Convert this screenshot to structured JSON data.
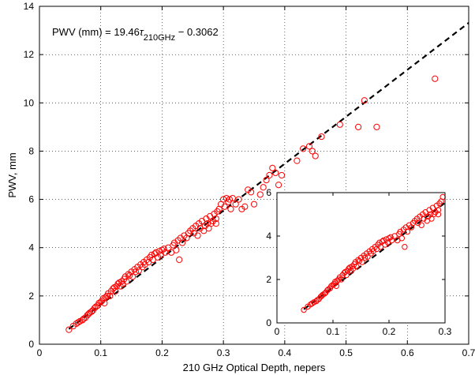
{
  "chart_data": [
    {
      "id": "main",
      "type": "scatter",
      "xlabel": "210 GHz Optical Depth, nepers",
      "ylabel": "PWV, mm",
      "xlim": [
        0,
        0.7
      ],
      "ylim": [
        0,
        14
      ],
      "xticks": [
        "0",
        "0.1",
        "0.2",
        "0.3",
        "0.4",
        "0.5",
        "0.6",
        "0.7"
      ],
      "yticks": [
        "0",
        "2",
        "4",
        "6",
        "8",
        "10",
        "12",
        "14"
      ],
      "grid": true,
      "annotation": {
        "prefix": "PWV (mm) = 19.46",
        "tau": "τ",
        "subscript": "210GHz",
        "suffix": " − 0.3062"
      },
      "fit": {
        "slope": 19.46,
        "intercept": -0.3062,
        "style": "dashed",
        "color": "#000000"
      },
      "marker_color": "#ff0000",
      "points": [
        [
          0.048,
          0.6
        ],
        [
          0.055,
          0.75
        ],
        [
          0.06,
          0.85
        ],
        [
          0.063,
          0.9
        ],
        [
          0.066,
          0.95
        ],
        [
          0.07,
          1.0
        ],
        [
          0.072,
          1.05
        ],
        [
          0.075,
          1.1
        ],
        [
          0.078,
          1.2
        ],
        [
          0.08,
          1.25
        ],
        [
          0.082,
          1.3
        ],
        [
          0.085,
          1.35
        ],
        [
          0.087,
          1.4
        ],
        [
          0.09,
          1.5
        ],
        [
          0.092,
          1.55
        ],
        [
          0.095,
          1.6
        ],
        [
          0.097,
          1.7
        ],
        [
          0.1,
          1.75
        ],
        [
          0.102,
          1.8
        ],
        [
          0.104,
          1.9
        ],
        [
          0.106,
          1.7
        ],
        [
          0.108,
          1.95
        ],
        [
          0.11,
          2.0
        ],
        [
          0.112,
          2.1
        ],
        [
          0.115,
          2.0
        ],
        [
          0.117,
          2.2
        ],
        [
          0.12,
          2.3
        ],
        [
          0.122,
          2.35
        ],
        [
          0.124,
          2.2
        ],
        [
          0.126,
          2.4
        ],
        [
          0.128,
          2.5
        ],
        [
          0.13,
          2.55
        ],
        [
          0.132,
          2.4
        ],
        [
          0.134,
          2.6
        ],
        [
          0.136,
          2.5
        ],
        [
          0.138,
          2.7
        ],
        [
          0.14,
          2.8
        ],
        [
          0.142,
          2.6
        ],
        [
          0.145,
          2.9
        ],
        [
          0.147,
          2.85
        ],
        [
          0.15,
          3.0
        ],
        [
          0.152,
          2.8
        ],
        [
          0.155,
          3.1
        ],
        [
          0.157,
          3.0
        ],
        [
          0.16,
          3.2
        ],
        [
          0.162,
          3.05
        ],
        [
          0.165,
          3.3
        ],
        [
          0.168,
          3.2
        ],
        [
          0.17,
          3.4
        ],
        [
          0.172,
          3.3
        ],
        [
          0.175,
          3.5
        ],
        [
          0.178,
          3.4
        ],
        [
          0.18,
          3.6
        ],
        [
          0.183,
          3.7
        ],
        [
          0.185,
          3.5
        ],
        [
          0.188,
          3.75
        ],
        [
          0.19,
          3.8
        ],
        [
          0.193,
          3.6
        ],
        [
          0.195,
          3.85
        ],
        [
          0.198,
          3.7
        ],
        [
          0.2,
          3.9
        ],
        [
          0.203,
          3.95
        ],
        [
          0.205,
          3.8
        ],
        [
          0.21,
          4.0
        ],
        [
          0.215,
          3.8
        ],
        [
          0.218,
          4.1
        ],
        [
          0.22,
          4.2
        ],
        [
          0.223,
          3.9
        ],
        [
          0.226,
          4.3
        ],
        [
          0.228,
          3.5
        ],
        [
          0.23,
          4.4
        ],
        [
          0.233,
          4.2
        ],
        [
          0.236,
          4.5
        ],
        [
          0.24,
          4.4
        ],
        [
          0.243,
          4.6
        ],
        [
          0.246,
          4.7
        ],
        [
          0.25,
          4.8
        ],
        [
          0.252,
          4.6
        ],
        [
          0.255,
          4.9
        ],
        [
          0.258,
          4.5
        ],
        [
          0.26,
          5.0
        ],
        [
          0.262,
          4.8
        ],
        [
          0.265,
          5.1
        ],
        [
          0.268,
          4.7
        ],
        [
          0.27,
          4.9
        ],
        [
          0.272,
          5.2
        ],
        [
          0.274,
          5.0
        ],
        [
          0.276,
          4.8
        ],
        [
          0.278,
          5.3
        ],
        [
          0.28,
          5.0
        ],
        [
          0.283,
          5.1
        ],
        [
          0.285,
          5.4
        ],
        [
          0.288,
          5.2
        ],
        [
          0.29,
          5.5
        ],
        [
          0.293,
          5.6
        ],
        [
          0.296,
          5.8
        ],
        [
          0.3,
          6.0
        ],
        [
          0.302,
          5.7
        ],
        [
          0.305,
          6.05
        ],
        [
          0.308,
          5.9
        ],
        [
          0.31,
          6.0
        ],
        [
          0.312,
          5.6
        ],
        [
          0.315,
          6.05
        ],
        [
          0.32,
          5.8
        ],
        [
          0.325,
          6.0
        ],
        [
          0.33,
          5.6
        ],
        [
          0.335,
          5.7
        ],
        [
          0.34,
          6.4
        ],
        [
          0.345,
          6.3
        ],
        [
          0.35,
          5.8
        ],
        [
          0.36,
          6.2
        ],
        [
          0.365,
          6.5
        ],
        [
          0.37,
          6.8
        ],
        [
          0.375,
          7.0
        ],
        [
          0.38,
          7.3
        ],
        [
          0.385,
          7.1
        ],
        [
          0.39,
          6.6
        ],
        [
          0.395,
          7.0
        ],
        [
          0.42,
          7.6
        ],
        [
          0.43,
          8.1
        ],
        [
          0.44,
          8.2
        ],
        [
          0.445,
          8.0
        ],
        [
          0.45,
          7.8
        ],
        [
          0.46,
          8.6
        ],
        [
          0.49,
          9.1
        ],
        [
          0.52,
          9.0
        ],
        [
          0.53,
          10.1
        ],
        [
          0.55,
          9.0
        ],
        [
          0.645,
          11.0
        ],
        [
          0.288,
          5.0
        ]
      ]
    },
    {
      "id": "inset",
      "type": "scatter",
      "xlim": [
        0,
        0.3
      ],
      "ylim": [
        0,
        6
      ],
      "xticks": [
        "0",
        "0.1",
        "0.2",
        "0.3"
      ],
      "yticks": [
        "0",
        "2",
        "4",
        "6"
      ],
      "grid": false,
      "fit": {
        "slope": 19.46,
        "intercept": -0.3062,
        "style": "dashed",
        "color": "#000000"
      },
      "marker_color": "#ff0000",
      "points": [
        [
          0.048,
          0.6
        ],
        [
          0.055,
          0.75
        ],
        [
          0.06,
          0.85
        ],
        [
          0.063,
          0.9
        ],
        [
          0.066,
          0.95
        ],
        [
          0.07,
          1.0
        ],
        [
          0.072,
          1.05
        ],
        [
          0.075,
          1.1
        ],
        [
          0.078,
          1.2
        ],
        [
          0.08,
          1.25
        ],
        [
          0.082,
          1.3
        ],
        [
          0.085,
          1.35
        ],
        [
          0.087,
          1.4
        ],
        [
          0.09,
          1.5
        ],
        [
          0.092,
          1.55
        ],
        [
          0.095,
          1.6
        ],
        [
          0.097,
          1.7
        ],
        [
          0.1,
          1.75
        ],
        [
          0.102,
          1.8
        ],
        [
          0.104,
          1.9
        ],
        [
          0.106,
          1.7
        ],
        [
          0.108,
          1.95
        ],
        [
          0.11,
          2.0
        ],
        [
          0.112,
          2.1
        ],
        [
          0.115,
          2.0
        ],
        [
          0.117,
          2.2
        ],
        [
          0.12,
          2.3
        ],
        [
          0.122,
          2.35
        ],
        [
          0.124,
          2.2
        ],
        [
          0.126,
          2.4
        ],
        [
          0.128,
          2.5
        ],
        [
          0.13,
          2.55
        ],
        [
          0.132,
          2.4
        ],
        [
          0.134,
          2.6
        ],
        [
          0.136,
          2.5
        ],
        [
          0.138,
          2.7
        ],
        [
          0.14,
          2.8
        ],
        [
          0.142,
          2.6
        ],
        [
          0.145,
          2.9
        ],
        [
          0.147,
          2.85
        ],
        [
          0.15,
          3.0
        ],
        [
          0.152,
          2.8
        ],
        [
          0.155,
          3.1
        ],
        [
          0.157,
          3.0
        ],
        [
          0.16,
          3.2
        ],
        [
          0.162,
          3.05
        ],
        [
          0.165,
          3.3
        ],
        [
          0.168,
          3.2
        ],
        [
          0.17,
          3.4
        ],
        [
          0.172,
          3.3
        ],
        [
          0.175,
          3.5
        ],
        [
          0.178,
          3.4
        ],
        [
          0.18,
          3.6
        ],
        [
          0.183,
          3.7
        ],
        [
          0.185,
          3.5
        ],
        [
          0.188,
          3.75
        ],
        [
          0.19,
          3.8
        ],
        [
          0.193,
          3.6
        ],
        [
          0.195,
          3.85
        ],
        [
          0.198,
          3.7
        ],
        [
          0.2,
          3.9
        ],
        [
          0.203,
          3.95
        ],
        [
          0.205,
          3.8
        ],
        [
          0.21,
          4.0
        ],
        [
          0.215,
          3.8
        ],
        [
          0.218,
          4.1
        ],
        [
          0.22,
          4.2
        ],
        [
          0.223,
          3.9
        ],
        [
          0.226,
          4.3
        ],
        [
          0.228,
          3.5
        ],
        [
          0.23,
          4.4
        ],
        [
          0.233,
          4.2
        ],
        [
          0.236,
          4.5
        ],
        [
          0.24,
          4.4
        ],
        [
          0.243,
          4.6
        ],
        [
          0.246,
          4.7
        ],
        [
          0.25,
          4.8
        ],
        [
          0.252,
          4.6
        ],
        [
          0.255,
          4.9
        ],
        [
          0.258,
          4.5
        ],
        [
          0.26,
          5.0
        ],
        [
          0.262,
          4.8
        ],
        [
          0.265,
          5.1
        ],
        [
          0.268,
          4.7
        ],
        [
          0.27,
          4.9
        ],
        [
          0.272,
          5.2
        ],
        [
          0.274,
          5.0
        ],
        [
          0.276,
          4.8
        ],
        [
          0.278,
          5.3
        ],
        [
          0.28,
          5.0
        ],
        [
          0.283,
          5.1
        ],
        [
          0.285,
          5.4
        ],
        [
          0.288,
          5.2
        ],
        [
          0.29,
          5.5
        ],
        [
          0.293,
          5.6
        ],
        [
          0.296,
          5.8
        ],
        [
          0.288,
          5.0
        ]
      ]
    }
  ]
}
